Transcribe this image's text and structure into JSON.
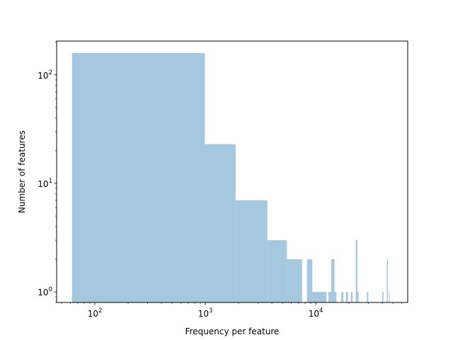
{
  "chart_data": {
    "type": "bar",
    "title": "",
    "xlabel": "Frequency per feature",
    "ylabel": "Number of features",
    "xscale": "log",
    "yscale": "log",
    "xlim": [
      45,
      68000
    ],
    "ylim": [
      0.8,
      205
    ],
    "grid": false,
    "bar_color": "#a6c8df",
    "x_ticks": [
      {
        "value": 100,
        "base": "10",
        "exp": "2"
      },
      {
        "value": 1000,
        "base": "10",
        "exp": "3"
      },
      {
        "value": 10000,
        "base": "10",
        "exp": "4"
      }
    ],
    "y_ticks": [
      {
        "value": 1,
        "base": "10",
        "exp": "0"
      },
      {
        "value": 10,
        "base": "10",
        "exp": "1"
      },
      {
        "value": 100,
        "base": "10",
        "exp": "2"
      }
    ],
    "bins": [
      {
        "x0": 62,
        "x1": 990,
        "count": 159
      },
      {
        "x0": 990,
        "x1": 1880,
        "count": 23
      },
      {
        "x0": 1880,
        "x1": 3640,
        "count": 7
      },
      {
        "x0": 3640,
        "x1": 5480,
        "count": 3
      },
      {
        "x0": 5480,
        "x1": 7520,
        "count": 2
      },
      {
        "x0": 8330,
        "x1": 9300,
        "count": 2
      },
      {
        "x0": 9300,
        "x1": 12500,
        "count": 1
      },
      {
        "x0": 13000,
        "x1": 13800,
        "count": 1
      },
      {
        "x0": 13800,
        "x1": 14800,
        "count": 2
      },
      {
        "x0": 14800,
        "x1": 15400,
        "count": 1
      },
      {
        "x0": 17000,
        "x1": 17800,
        "count": 1
      },
      {
        "x0": 18800,
        "x1": 19600,
        "count": 1
      },
      {
        "x0": 20800,
        "x1": 21600,
        "count": 1
      },
      {
        "x0": 23000,
        "x1": 23800,
        "count": 3
      },
      {
        "x0": 23800,
        "x1": 24400,
        "count": 1
      },
      {
        "x0": 29000,
        "x1": 29900,
        "count": 1
      },
      {
        "x0": 40000,
        "x1": 41000,
        "count": 1
      },
      {
        "x0": 44000,
        "x1": 45000,
        "count": 2
      },
      {
        "x0": 46000,
        "x1": 46700,
        "count": 1
      }
    ]
  }
}
